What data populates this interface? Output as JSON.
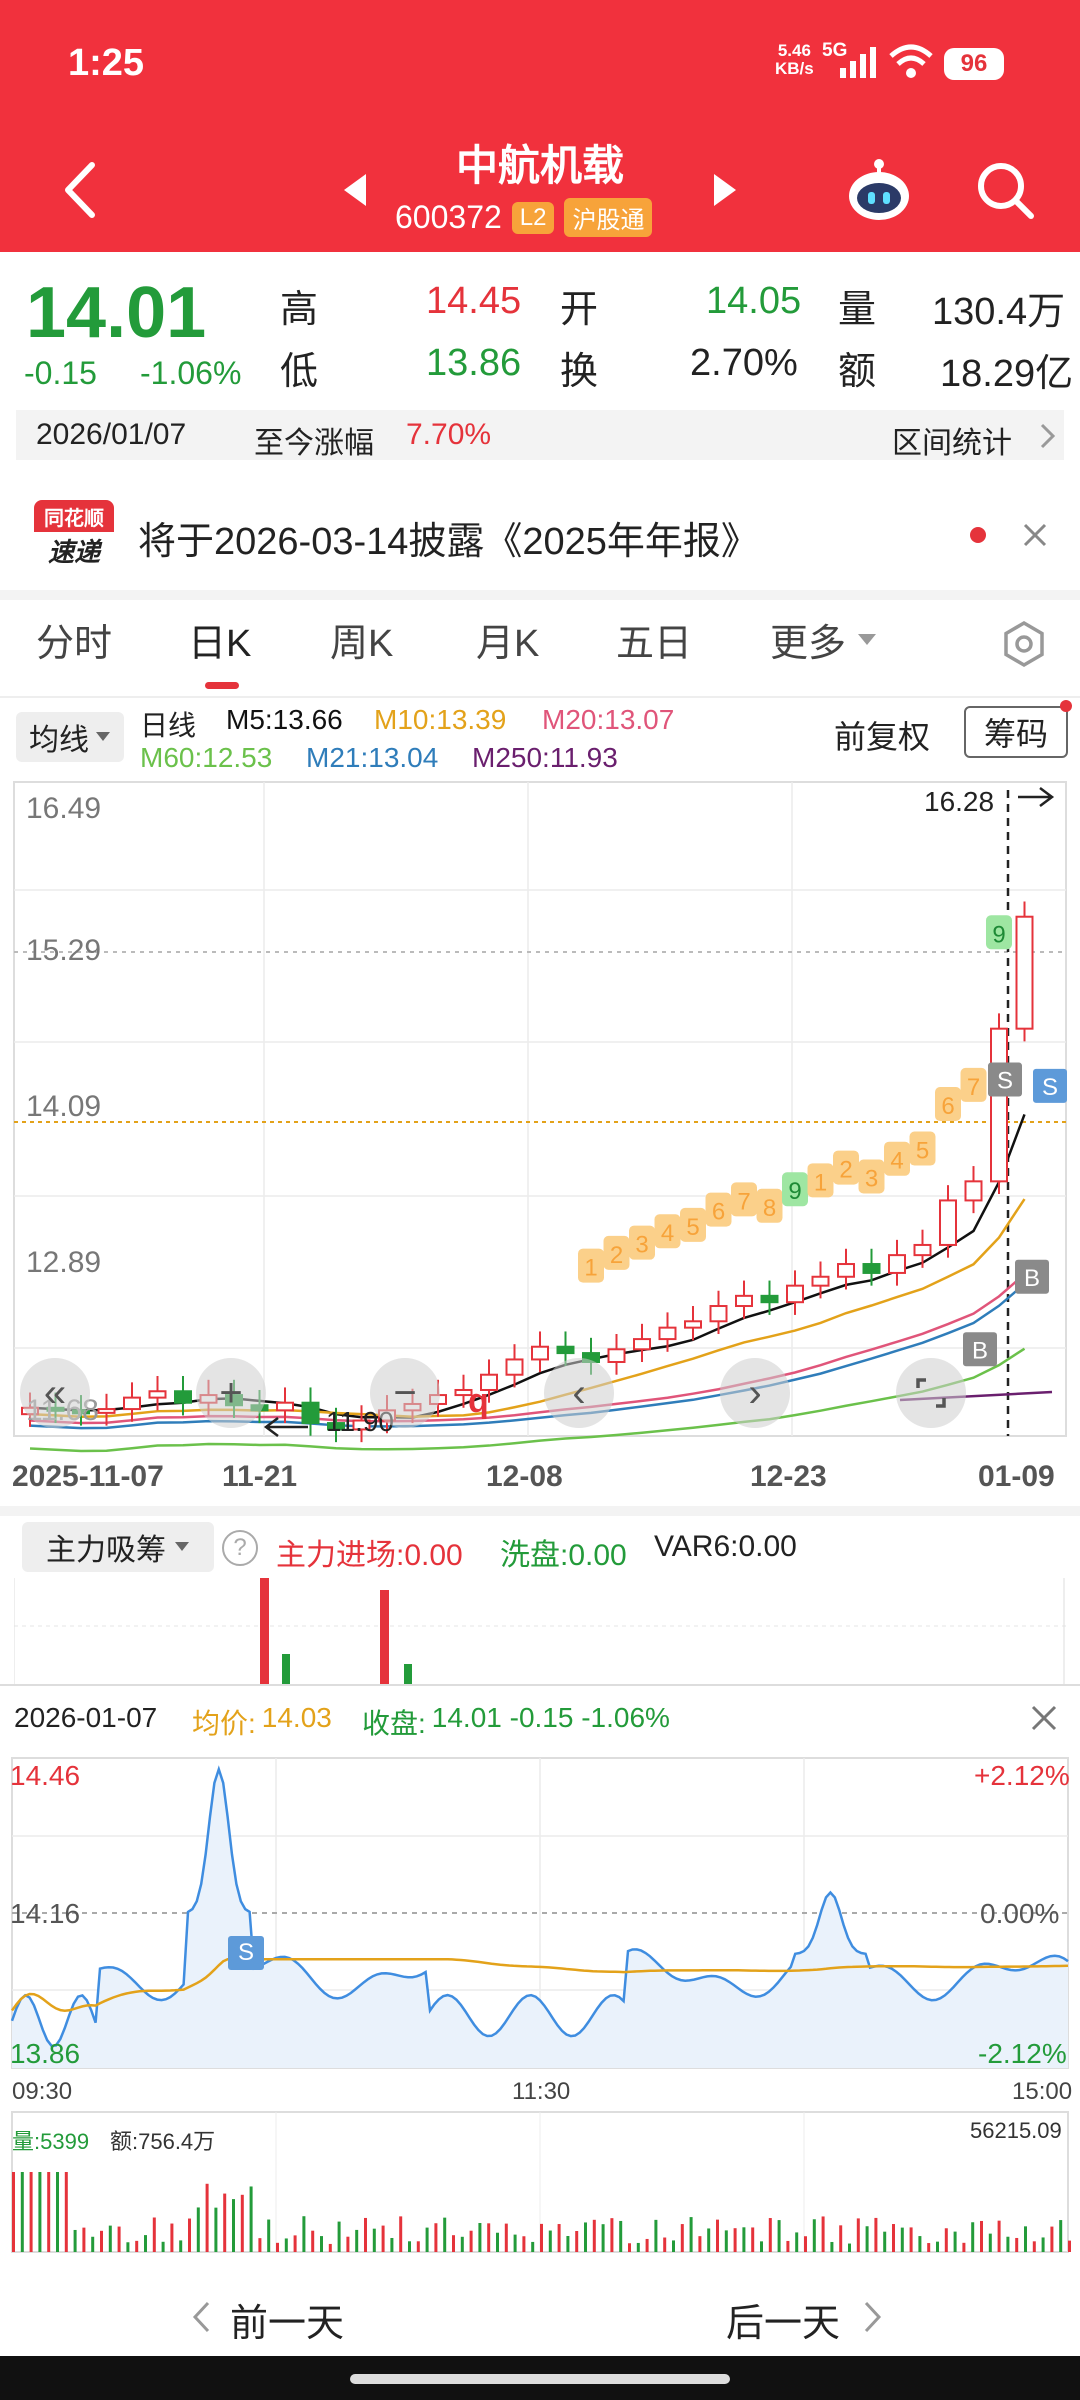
{
  "status_bar": {
    "time": "1:25",
    "net_speed": "5.46",
    "net_unit": "KB/s",
    "net_type": "5G",
    "battery": "96"
  },
  "header": {
    "stock_name": "中航机载",
    "stock_code": "600372",
    "badge_l2": "L2",
    "badge_connect": "沪股通"
  },
  "quote": {
    "price": "14.01",
    "change": "-0.15",
    "change_pct": "-1.06%",
    "high_label": "高",
    "high": "14.45",
    "open_label": "开",
    "open": "14.05",
    "vol_label": "量",
    "vol": "130.4万",
    "low_label": "低",
    "low": "13.86",
    "turn_label": "换",
    "turn": "2.70%",
    "amt_label": "额",
    "amt": "18.29亿"
  },
  "range": {
    "date": "2026/01/07",
    "label": "至今涨幅",
    "value": "7.70%",
    "stat": "区间统计"
  },
  "notice": {
    "logo_top": "同花顺",
    "logo_bottom": "速递",
    "text": "将于2026-03-14披露《2025年年报》"
  },
  "tabs": [
    {
      "label": "分时"
    },
    {
      "label": "日K"
    },
    {
      "label": "周K"
    },
    {
      "label": "月K"
    },
    {
      "label": "五日"
    },
    {
      "label": "更多"
    }
  ],
  "ma_bar": {
    "selector": "均线",
    "period": "日线",
    "m5": "M5:13.66",
    "m10": "M10:13.39",
    "m20": "M20:13.07",
    "m60": "M60:12.53",
    "m21": "M21:13.04",
    "m250": "M250:11.93",
    "adjust": "前复权",
    "chip": "筹码"
  },
  "kline": {
    "y_labels": [
      "16.49",
      "15.29",
      "14.09",
      "12.89",
      "11.68"
    ],
    "x_labels": [
      "2025-11-07",
      "11-21",
      "12-08",
      "12-23",
      "01-09"
    ],
    "max_marker": "16.28",
    "min_marker": "11.90",
    "seq_labels": [
      "1",
      "2",
      "3",
      "4",
      "5",
      "6",
      "7",
      "8",
      "9",
      "1",
      "2",
      "3",
      "4",
      "5",
      "6",
      "7",
      "9"
    ],
    "s_label": "S",
    "b_label": "B",
    "q_label": "q"
  },
  "indicator": {
    "selector": "主力吸筹",
    "help": "?",
    "a": "主力进场:0.00",
    "b": "洗盘:0.00",
    "c": "VAR6:0.00"
  },
  "popup": {
    "date": "2026-01-07",
    "avg_label": "均价:",
    "avg": "14.03",
    "close_label": "收盘:",
    "close": "14.01 -0.15 -1.06%",
    "y_left": [
      "14.46",
      "14.16",
      "13.86"
    ],
    "y_right": [
      "+2.12%",
      "0.00%",
      "-2.12%"
    ],
    "times": [
      "09:30",
      "11:30",
      "15:00"
    ],
    "vol_label": "量:5399",
    "amt_label": "额:756.4万",
    "vol_max": "56215.09",
    "s_label": "S",
    "prev": "前一天",
    "next": "后一天"
  },
  "colors": {
    "header": "#f1313d",
    "up": "#e5333b",
    "down": "#239b3a",
    "m5": "#111111",
    "m10": "#e3a21a",
    "m20": "#e0557a",
    "m60": "#6bc14b",
    "m21": "#2f7dba",
    "m250": "#6a1f6e"
  }
}
